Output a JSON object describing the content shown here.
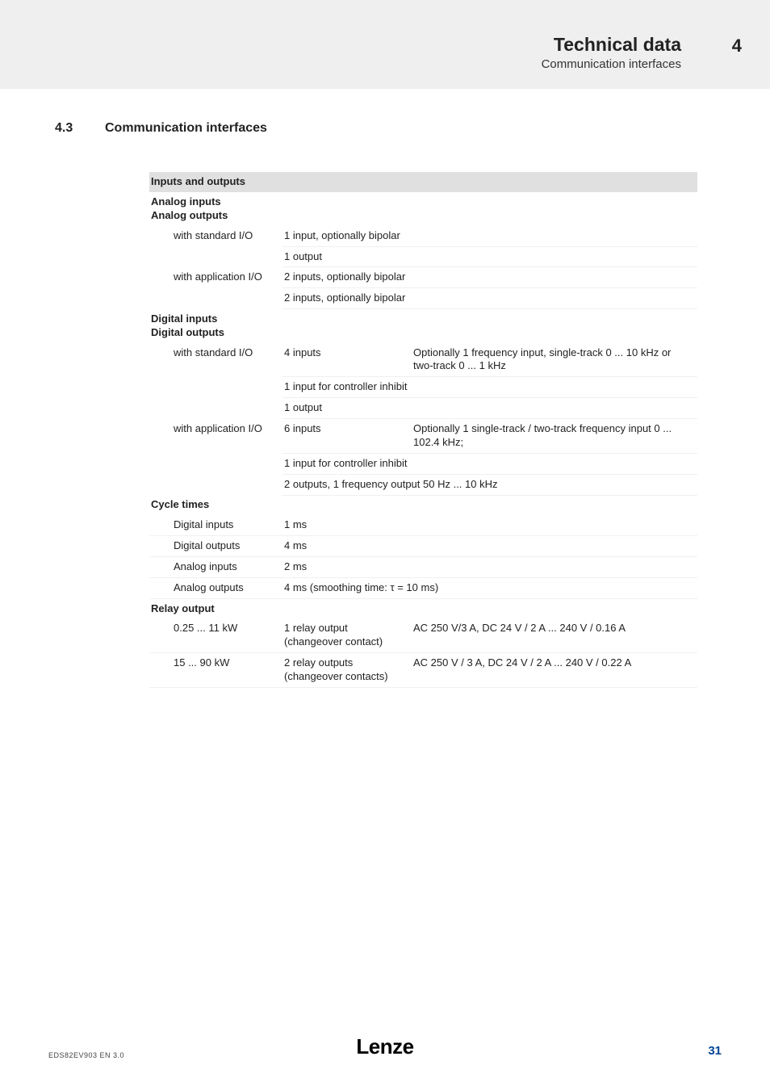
{
  "header": {
    "title": "Technical data",
    "subtitle": "Communication interfaces",
    "chapter_num": "4"
  },
  "section": {
    "num": "4.3",
    "title": "Communication interfaces"
  },
  "table": {
    "header_row": "Inputs and outputs",
    "colors": {
      "header_bg": "#e0e0e0",
      "border": "#f0f0f0"
    },
    "analog_heading_1": "Analog inputs",
    "analog_heading_2": "Analog outputs",
    "r1_label": "with standard I/O",
    "r1_a": "1 input, optionally bipolar",
    "r1_b": "1 output",
    "r2_label": "with application I/O",
    "r2_a": "2 inputs, optionally bipolar",
    "r2_b": "2 inputs, optionally bipolar",
    "digital_heading_1": "Digital inputs",
    "digital_heading_2": "Digital outputs",
    "r3_label": "with standard I/O",
    "r3_a": "4 inputs",
    "r3_a_desc": "Optionally 1 frequency input, single-track 0 ... 10 kHz or two-track 0 ... 1 kHz",
    "r3_b": "1 input for controller inhibit",
    "r3_c": "1 output",
    "r4_label": "with application I/O",
    "r4_a": "6 inputs",
    "r4_a_desc": "Optionally 1 single-track / two-track frequency input 0 ... 102.4 kHz;",
    "r4_b": "1 input for controller inhibit",
    "r4_c": "2 outputs, 1 frequency output 50 Hz ... 10 kHz",
    "cycle_heading": "Cycle times",
    "c1_label": "Digital inputs",
    "c1_val": "1 ms",
    "c2_label": "Digital outputs",
    "c2_val": "4 ms",
    "c3_label": "Analog inputs",
    "c3_val": "2 ms",
    "c4_label": "Analog outputs",
    "c4_val": "4 ms (smoothing time: τ = 10 ms)",
    "relay_heading": "Relay output",
    "rl1_label": "0.25 ... 11 kW",
    "rl1_a": "1 relay output (changeover contact)",
    "rl1_b": "AC 250 V/3 A, DC 24 V / 2 A ... 240 V / 0.16 A",
    "rl2_label": "15 ... 90 kW",
    "rl2_a": "2 relay outputs (changeover contacts)",
    "rl2_b": "AC 250 V / 3 A, DC 24 V / 2 A ... 240 V / 0.22 A"
  },
  "footer": {
    "left": "EDS82EV903  EN  3.0",
    "brand": "Lenze",
    "page": "31",
    "page_color": "#004494"
  }
}
